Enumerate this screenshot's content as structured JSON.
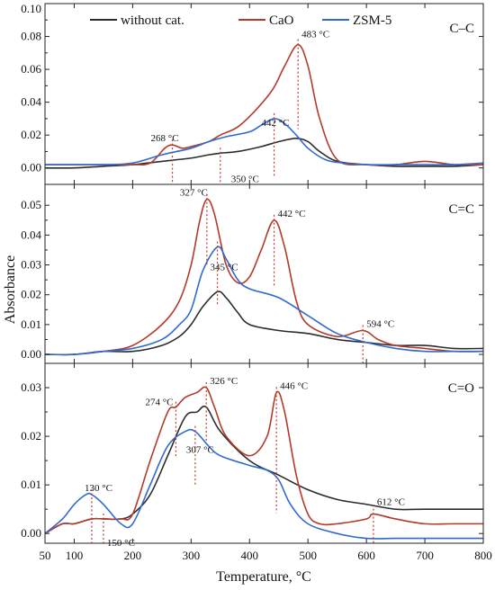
{
  "chart_data": {
    "type": "line",
    "xlabel": "Temperature, °C",
    "ylabel": "Absorbance",
    "xlim": [
      50,
      800
    ],
    "x_ticks": [
      50,
      100,
      200,
      300,
      400,
      500,
      600,
      700,
      800
    ],
    "legend": {
      "placement": "top",
      "entries": [
        {
          "name": "without cat.",
          "color": "#2b2b2b"
        },
        {
          "name": "CaO",
          "color": "#b33a2a"
        },
        {
          "name": "ZSM-5",
          "color": "#2f6ad0"
        }
      ]
    },
    "panels": [
      {
        "label": "C–C",
        "ylim": [
          -0.01,
          0.1
        ],
        "y_ticks": [
          0.0,
          0.02,
          0.04,
          0.06,
          0.08,
          0.1
        ],
        "y_tick_labels": [
          "0.00",
          "0.02",
          "0.04",
          "0.06",
          "0.08",
          "0.10"
        ],
        "series": [
          {
            "name": "without cat.",
            "color": "#2b2b2b",
            "x": [
              50,
              100,
              150,
              200,
              250,
              300,
              330,
              350,
              380,
              420,
              450,
              480,
              500,
              520,
              550,
              600,
              650,
              700,
              750,
              800
            ],
            "y": [
              0.0,
              0.0,
              0.001,
              0.002,
              0.004,
              0.006,
              0.008,
              0.009,
              0.01,
              0.013,
              0.016,
              0.018,
              0.016,
              0.01,
              0.004,
              0.002,
              0.001,
              0.001,
              0.001,
              0.002
            ]
          },
          {
            "name": "CaO",
            "color": "#b33a2a",
            "x": [
              50,
              100,
              150,
              200,
              230,
              255,
              268,
              285,
              300,
              330,
              350,
              380,
              410,
              440,
              460,
              483,
              500,
              520,
              550,
              600,
              650,
              700,
              750,
              800
            ],
            "y": [
              0.002,
              0.002,
              0.002,
              0.002,
              0.003,
              0.012,
              0.014,
              0.012,
              0.013,
              0.016,
              0.02,
              0.025,
              0.035,
              0.048,
              0.062,
              0.075,
              0.062,
              0.03,
              0.005,
              0.002,
              0.002,
              0.004,
              0.002,
              0.002
            ]
          },
          {
            "name": "ZSM-5",
            "color": "#2f6ad0",
            "x": [
              50,
              100,
              150,
              200,
              250,
              300,
              330,
              360,
              400,
              420,
              442,
              460,
              480,
              500,
              530,
              560,
              600,
              650,
              700,
              750,
              800
            ],
            "y": [
              0.002,
              0.002,
              0.002,
              0.003,
              0.008,
              0.012,
              0.016,
              0.019,
              0.022,
              0.026,
              0.03,
              0.027,
              0.02,
              0.012,
              0.005,
              0.003,
              0.002,
              0.002,
              0.002,
              0.002,
              0.003
            ]
          }
        ],
        "annotations": [
          {
            "text": "268 °C",
            "x": 268
          },
          {
            "text": "350 °C",
            "x": 350
          },
          {
            "text": "442 °C",
            "x": 442
          },
          {
            "text": "483 °C",
            "x": 483
          }
        ]
      },
      {
        "label": "C=C",
        "ylim": [
          -0.003,
          0.057
        ],
        "y_ticks": [
          0.0,
          0.01,
          0.02,
          0.03,
          0.04,
          0.05
        ],
        "y_tick_labels": [
          "0.00",
          "0.01",
          "0.02",
          "0.03",
          "0.04",
          "0.05"
        ],
        "series": [
          {
            "name": "without cat.",
            "color": "#2b2b2b",
            "x": [
              50,
              100,
              150,
              200,
              250,
              280,
              300,
              320,
              345,
              360,
              380,
              400,
              450,
              500,
              550,
              600,
              650,
              700,
              750,
              800
            ],
            "y": [
              0.0,
              0.0,
              0.001,
              0.001,
              0.003,
              0.006,
              0.01,
              0.016,
              0.021,
              0.019,
              0.014,
              0.01,
              0.008,
              0.007,
              0.005,
              0.004,
              0.003,
              0.003,
              0.002,
              0.002
            ]
          },
          {
            "name": "CaO",
            "color": "#b33a2a",
            "x": [
              50,
              100,
              150,
              200,
              250,
              280,
              300,
              315,
              327,
              340,
              360,
              380,
              400,
              420,
              442,
              460,
              480,
              500,
              550,
              594,
              620,
              650,
              700,
              750,
              800
            ],
            "y": [
              0.0,
              0.0,
              0.001,
              0.003,
              0.01,
              0.018,
              0.03,
              0.045,
              0.052,
              0.047,
              0.03,
              0.024,
              0.026,
              0.035,
              0.045,
              0.036,
              0.018,
              0.01,
              0.006,
              0.008,
              0.005,
              0.003,
              0.002,
              0.001,
              0.001
            ]
          },
          {
            "name": "ZSM-5",
            "color": "#2f6ad0",
            "x": [
              50,
              100,
              150,
              200,
              250,
              280,
              300,
              320,
              345,
              360,
              380,
              400,
              450,
              500,
              550,
              600,
              650,
              700,
              750,
              800
            ],
            "y": [
              0.0,
              0.0,
              0.001,
              0.002,
              0.005,
              0.01,
              0.015,
              0.028,
              0.036,
              0.032,
              0.025,
              0.022,
              0.019,
              0.013,
              0.007,
              0.004,
              0.002,
              0.001,
              0.001,
              0.001
            ]
          }
        ],
        "annotations": [
          {
            "text": "327 °C",
            "x": 327
          },
          {
            "text": "345 °C",
            "x": 345
          },
          {
            "text": "442 °C",
            "x": 442
          },
          {
            "text": "594 °C",
            "x": 594
          }
        ]
      },
      {
        "label": "C=O",
        "ylim": [
          -0.002,
          0.035
        ],
        "y_ticks": [
          0.0,
          0.01,
          0.02,
          0.03
        ],
        "y_tick_labels": [
          "0.00",
          "0.01",
          "0.02",
          "0.03"
        ],
        "series": [
          {
            "name": "without cat.",
            "color": "#2b2b2b",
            "x": [
              50,
              80,
              100,
              130,
              150,
              180,
              200,
              230,
              260,
              290,
              310,
              326,
              350,
              400,
              450,
              500,
              550,
              600,
              650,
              700,
              750,
              800
            ],
            "y": [
              0.0,
              0.002,
              0.002,
              0.003,
              0.003,
              0.003,
              0.004,
              0.008,
              0.016,
              0.024,
              0.025,
              0.026,
              0.021,
              0.015,
              0.012,
              0.009,
              0.007,
              0.006,
              0.005,
              0.005,
              0.005,
              0.005
            ]
          },
          {
            "name": "CaO",
            "color": "#b33a2a",
            "x": [
              50,
              80,
              100,
              130,
              150,
              180,
              200,
              230,
              260,
              274,
              290,
              310,
              326,
              340,
              360,
              400,
              430,
              446,
              460,
              480,
              500,
              520,
              550,
              600,
              612,
              650,
              700,
              750,
              800
            ],
            "y": [
              0.0,
              0.002,
              0.002,
              0.003,
              0.003,
              0.003,
              0.004,
              0.015,
              0.025,
              0.026,
              0.028,
              0.029,
              0.03,
              0.026,
              0.02,
              0.016,
              0.02,
              0.029,
              0.025,
              0.012,
              0.004,
              0.002,
              0.002,
              0.003,
              0.004,
              0.003,
              0.002,
              0.002,
              0.002
            ]
          },
          {
            "name": "ZSM-5",
            "color": "#2f6ad0",
            "x": [
              50,
              80,
              100,
              120,
              130,
              150,
              180,
              200,
              230,
              260,
              290,
              307,
              330,
              350,
              400,
              430,
              450,
              470,
              500,
              550,
              600,
              650,
              700,
              750,
              800
            ],
            "y": [
              0.0,
              0.003,
              0.006,
              0.008,
              0.008,
              0.006,
              0.002,
              0.002,
              0.01,
              0.018,
              0.021,
              0.021,
              0.018,
              0.016,
              0.014,
              0.013,
              0.011,
              0.006,
              0.002,
              0.0,
              -0.001,
              -0.001,
              -0.001,
              -0.001,
              -0.001
            ]
          }
        ],
        "annotations": [
          {
            "text": "130 °C",
            "x": 130
          },
          {
            "text": "150 °C",
            "x": 150
          },
          {
            "text": "274 °C",
            "x": 274
          },
          {
            "text": "307 °C",
            "x": 307
          },
          {
            "text": "326 °C",
            "x": 326
          },
          {
            "text": "446 °C",
            "x": 446
          },
          {
            "text": "612 °C",
            "x": 612
          }
        ]
      }
    ]
  }
}
